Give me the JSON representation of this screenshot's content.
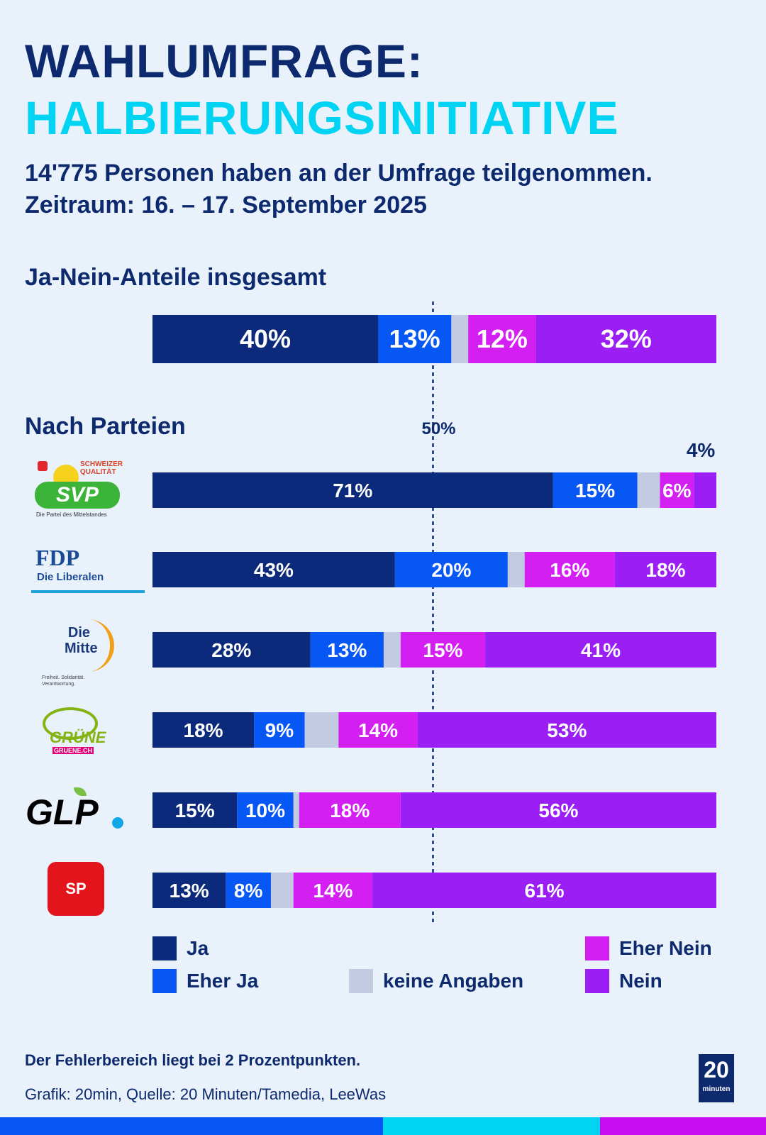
{
  "header": {
    "title_line1": "WAHLUMFRAGE:",
    "title_line2": "HALBIERUNGSINITIATIVE",
    "subtitle_line1": "14'775 Personen haben an der Umfrage teilgenommen.",
    "subtitle_line2": "Zeitraum:  16. – 17. September 2025"
  },
  "sections": {
    "overall": "Ja-Nein-Anteile insgesamt",
    "parties": "Nach Parteien"
  },
  "colors": {
    "ja": "#0c2a7c",
    "eher_ja": "#0757f5",
    "keine_angaben": "#c3cbe2",
    "eher_nein": "#d41ff2",
    "nein": "#9b1ef5",
    "title_accent": "#00d4f2"
  },
  "chart_data": {
    "type": "bar",
    "orientation": "horizontal-stacked",
    "reference_line": {
      "value": 50,
      "label": "50%"
    },
    "series_names": [
      "Ja",
      "Eher Ja",
      "keine Angaben",
      "Eher Nein",
      "Nein"
    ],
    "categories": [
      "Insgesamt",
      "SVP",
      "FDP",
      "Die Mitte",
      "Grüne",
      "GLP",
      "SP"
    ],
    "rows": [
      {
        "category": "Insgesamt",
        "values": [
          40,
          13,
          3,
          12,
          32
        ],
        "labels": [
          "40%",
          "13%",
          "",
          "12%",
          "32%"
        ]
      },
      {
        "category": "SVP",
        "values": [
          71,
          15,
          4,
          6,
          4
        ],
        "labels": [
          "71%",
          "15%",
          "",
          "6%",
          "4%"
        ]
      },
      {
        "category": "FDP",
        "values": [
          43,
          20,
          3,
          16,
          18
        ],
        "labels": [
          "43%",
          "20%",
          "",
          "16%",
          "18%"
        ]
      },
      {
        "category": "Die Mitte",
        "values": [
          28,
          13,
          3,
          15,
          41
        ],
        "labels": [
          "28%",
          "13%",
          "",
          "15%",
          "41%"
        ]
      },
      {
        "category": "Grüne",
        "values": [
          18,
          9,
          6,
          14,
          53
        ],
        "labels": [
          "18%",
          "9%",
          "",
          "14%",
          "53%"
        ]
      },
      {
        "category": "GLP",
        "values": [
          15,
          10,
          1,
          18,
          56
        ],
        "labels": [
          "15%",
          "10%",
          "",
          "18%",
          "56%"
        ]
      },
      {
        "category": "SP",
        "values": [
          13,
          8,
          4,
          14,
          61
        ],
        "labels": [
          "13%",
          "8%",
          "",
          "14%",
          "61%"
        ]
      }
    ],
    "xlim": [
      0,
      100
    ],
    "legend_position": "bottom"
  },
  "legend": {
    "ja": "Ja",
    "eher_ja": "Eher Ja",
    "keine_angaben": "keine Angaben",
    "eher_nein": "Eher Nein",
    "nein": "Nein"
  },
  "logos": {
    "svp": "SVP",
    "svp_tag": "SCHWEIZER QUALITÄT",
    "svp_sub": "Die Partei des Mittelstandes",
    "fdp": "FDP",
    "fdp_sub": "Die Liberalen",
    "mitte_1": "Die",
    "mitte_2": "Mitte",
    "mitte_sub": "Freiheit. Solidarität. Verantwortung.",
    "gruene": "GRÜNE",
    "gruene_sub": "GRUENE.CH",
    "glp": "GLP",
    "sp": "SP",
    "brand": "20 minuten"
  },
  "footer": {
    "note": "Der Fehlerbereich liegt bei 2 Prozentpunkten.",
    "source": "Grafik: 20min, Quelle: 20 Minuten/Tamedia, LeeWas"
  }
}
